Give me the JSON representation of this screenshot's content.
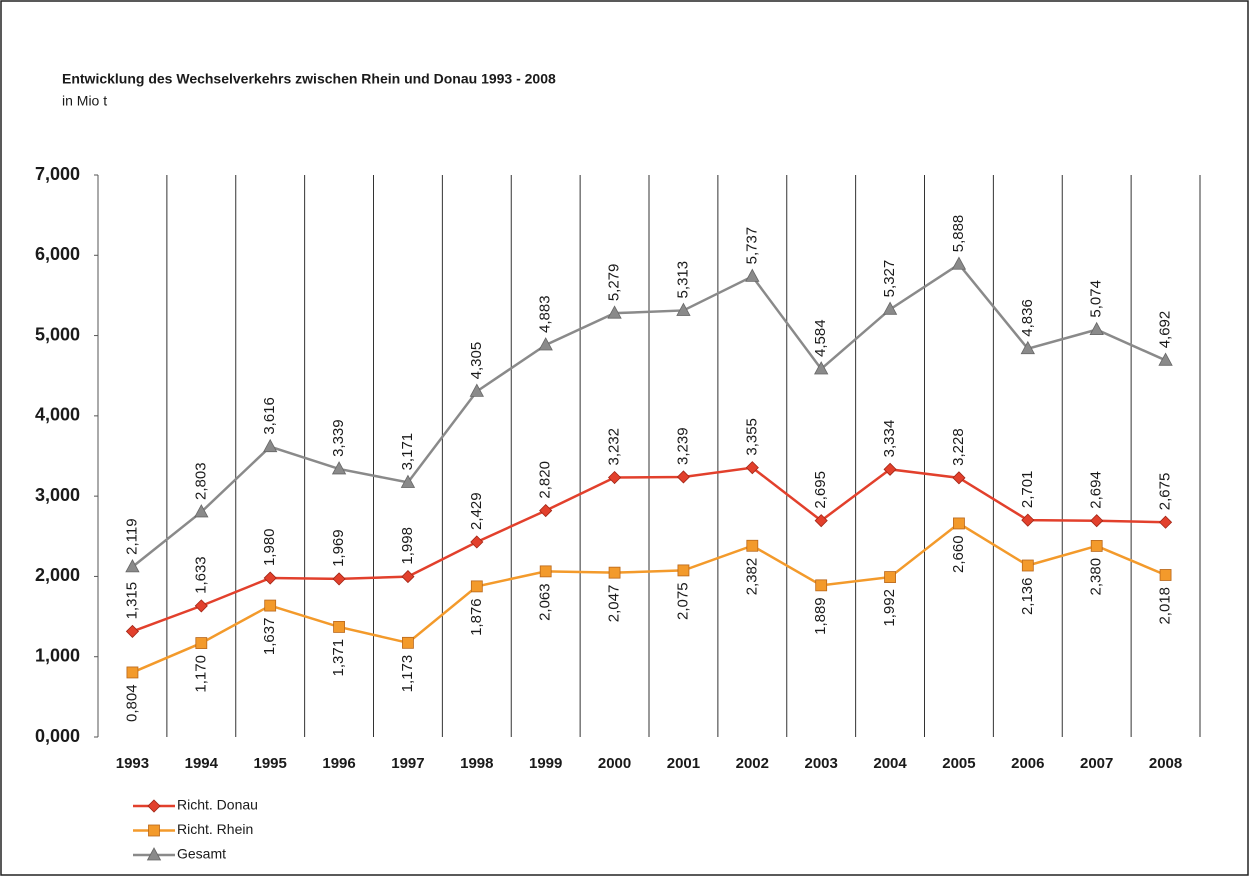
{
  "chart_data": {
    "type": "line",
    "title": "Entwicklung des Wechselverkehrs zwischen Rhein und Donau 1993 - 2008",
    "subtitle": "in Mio t",
    "categories": [
      "1993",
      "1994",
      "1995",
      "1996",
      "1997",
      "1998",
      "1999",
      "2000",
      "2001",
      "2002",
      "2003",
      "2004",
      "2005",
      "2006",
      "2007",
      "2008"
    ],
    "series": [
      {
        "name": "Richt. Donau",
        "color": "#e2402c",
        "marker": "diamond",
        "values": [
          1.315,
          1.633,
          1.98,
          1.969,
          1.998,
          2.429,
          2.82,
          3.232,
          3.239,
          3.355,
          2.695,
          3.334,
          3.228,
          2.701,
          2.694,
          2.675
        ],
        "value_labels": [
          "1,315",
          "1,633",
          "1,980",
          "1,969",
          "1,998",
          "2,429",
          "2,820",
          "3,232",
          "3,239",
          "3,355",
          "2,695",
          "3,334",
          "3,228",
          "2,701",
          "2,694",
          "2,675"
        ]
      },
      {
        "name": "Richt. Rhein",
        "color": "#f39a2b",
        "marker": "square",
        "values": [
          0.804,
          1.17,
          1.637,
          1.371,
          1.173,
          1.876,
          2.063,
          2.047,
          2.075,
          2.382,
          1.889,
          1.992,
          2.66,
          2.136,
          2.38,
          2.018
        ],
        "value_labels": [
          "0,804",
          "1,170",
          "1,637",
          "1,371",
          "1,173",
          "1,876",
          "2,063",
          "2,047",
          "2,075",
          "2,382",
          "1,889",
          "1,992",
          "2,660",
          "2,136",
          "2,380",
          "2,018"
        ]
      },
      {
        "name": "Gesamt",
        "color": "#8a8a8a",
        "marker": "triangle",
        "values": [
          2.119,
          2.803,
          3.616,
          3.339,
          3.171,
          4.305,
          4.883,
          5.279,
          5.313,
          5.737,
          4.584,
          5.327,
          5.888,
          4.836,
          5.074,
          4.692
        ],
        "value_labels": [
          "2,119",
          "2,803",
          "3,616",
          "3,339",
          "3,171",
          "4,305",
          "4,883",
          "5,279",
          "5,313",
          "5,737",
          "4,584",
          "5,327",
          "5,888",
          "4,836",
          "5,074",
          "4,692"
        ]
      }
    ],
    "ylim": [
      0,
      7
    ],
    "yticks": [
      {
        "value": 0,
        "label": "0,000"
      },
      {
        "value": 1,
        "label": "1,000"
      },
      {
        "value": 2,
        "label": "2,000"
      },
      {
        "value": 3,
        "label": "3,000"
      },
      {
        "value": 4,
        "label": "4,000"
      },
      {
        "value": 5,
        "label": "5,000"
      },
      {
        "value": 6,
        "label": "6,000"
      },
      {
        "value": 7,
        "label": "7,000"
      }
    ],
    "legend": "bottom-left"
  }
}
